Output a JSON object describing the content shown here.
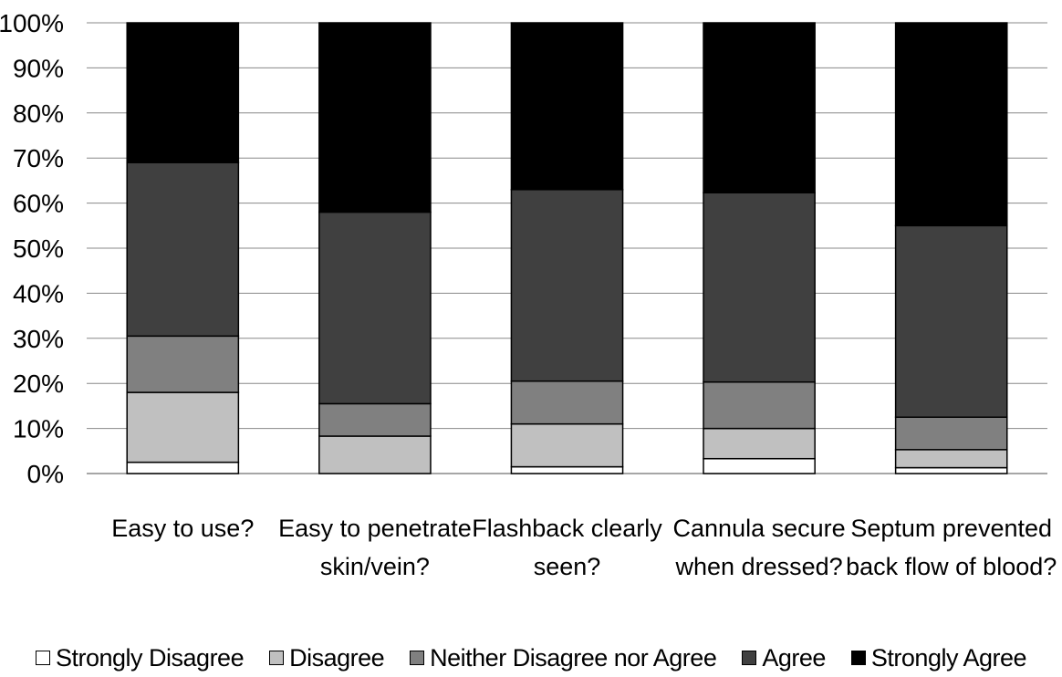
{
  "chart_data": {
    "type": "bar",
    "stacked": true,
    "percent": true,
    "categories": [
      [
        "Easy to use?"
      ],
      [
        "Easy to penetrate",
        "skin/vein?"
      ],
      [
        "Flashback clearly",
        "seen?"
      ],
      [
        "Cannula secure",
        "when dressed?"
      ],
      [
        "Septum prevented",
        "back flow of blood?"
      ]
    ],
    "series": [
      {
        "name": "Strongly Disagree",
        "color": "#ffffff",
        "values": [
          2.5,
          0,
          1.5,
          3.3,
          1.3
        ]
      },
      {
        "name": "Disagree",
        "color": "#c0c0c0",
        "values": [
          15.5,
          8.3,
          9.5,
          6.7,
          4.0
        ]
      },
      {
        "name": "Neither Disagree nor Agree",
        "color": "#808080",
        "values": [
          12.5,
          7.2,
          9.5,
          10.3,
          7.2
        ]
      },
      {
        "name": "Agree",
        "color": "#404040",
        "values": [
          38.5,
          42.5,
          42.5,
          42.0,
          42.5
        ]
      },
      {
        "name": "Strongly Agree",
        "color": "#000000",
        "values": [
          31.0,
          42.0,
          37.0,
          37.7,
          45.0
        ]
      }
    ],
    "y_ticks": [
      "0%",
      "10%",
      "20%",
      "30%",
      "40%",
      "50%",
      "60%",
      "70%",
      "80%",
      "90%",
      "100%"
    ],
    "ylim": [
      0,
      100
    ],
    "grid": true,
    "legend": "bottom"
  }
}
